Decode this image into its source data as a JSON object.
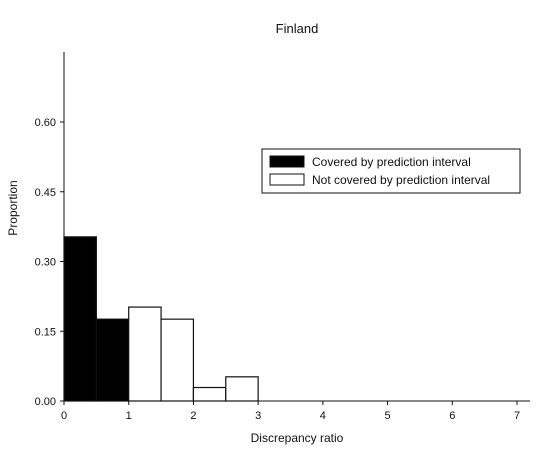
{
  "chart_data": {
    "type": "bar",
    "title": "Finland",
    "xlabel": "Discrepancy ratio",
    "ylabel": "Proportion",
    "xlim": [
      0,
      7
    ],
    "ylim": [
      0,
      0.75
    ],
    "xticks": [
      "0",
      "1",
      "2",
      "3",
      "4",
      "5",
      "6",
      "7"
    ],
    "yticks": [
      "0.00",
      "0.15",
      "0.30",
      "0.45",
      "0.60"
    ],
    "grid": false,
    "legend_position": "right",
    "series": [
      {
        "name": "Covered by prediction interval",
        "color": "#000000",
        "bins": [
          {
            "x0": 0.0,
            "x1": 0.5,
            "value": 0.353
          },
          {
            "x0": 0.5,
            "x1": 1.0,
            "value": 0.176
          }
        ]
      },
      {
        "name": "Not covered by prediction interval",
        "color": "#ffffff",
        "bins": [
          {
            "x0": 1.0,
            "x1": 1.5,
            "value": 0.202
          },
          {
            "x0": 1.5,
            "x1": 2.0,
            "value": 0.176
          },
          {
            "x0": 2.0,
            "x1": 2.5,
            "value": 0.029
          },
          {
            "x0": 2.5,
            "x1": 3.0,
            "value": 0.052
          }
        ]
      }
    ]
  }
}
